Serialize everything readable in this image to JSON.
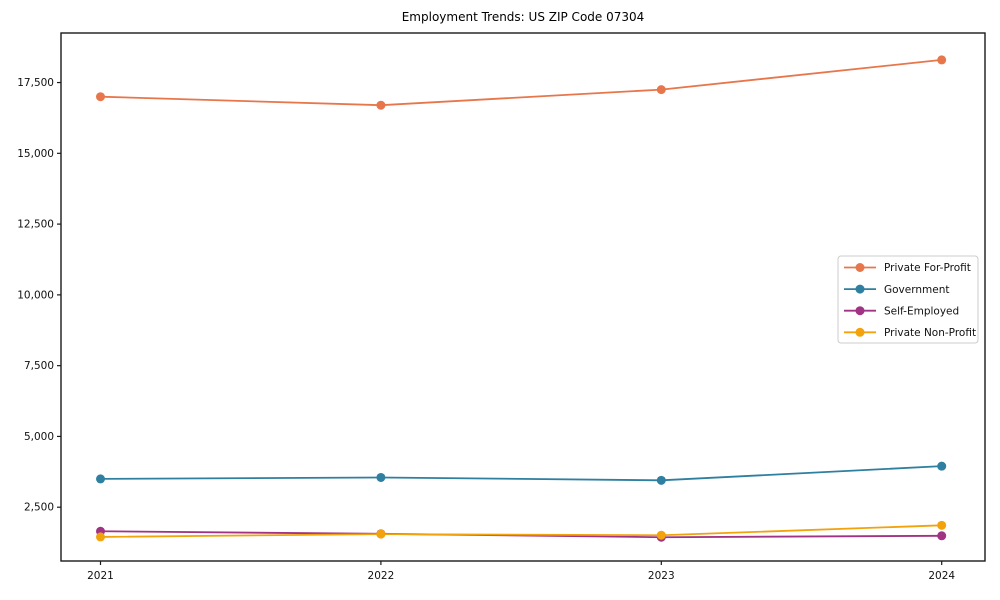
{
  "chart_data": {
    "type": "line",
    "title": "Employment Trends: US ZIP Code 07304",
    "categories": [
      "2021",
      "2022",
      "2023",
      "2024"
    ],
    "series": [
      {
        "name": "Private For-Profit",
        "color": "#E8764B",
        "values": [
          17000,
          16700,
          17250,
          18300
        ]
      },
      {
        "name": "Government",
        "color": "#2E7FA0",
        "values": [
          3500,
          3550,
          3450,
          3950
        ]
      },
      {
        "name": "Self-Employed",
        "color": "#A03383",
        "values": [
          1650,
          1560,
          1440,
          1490
        ]
      },
      {
        "name": "Private Non-Profit",
        "color": "#F2A30C",
        "values": [
          1450,
          1550,
          1510,
          1860
        ]
      }
    ],
    "yticks": [
      2500,
      5000,
      7500,
      10000,
      12500,
      15000,
      17500
    ],
    "ytick_labels": [
      "2,500",
      "5,000",
      "7,500",
      "10,000",
      "12,500",
      "15,000",
      "17,500"
    ],
    "ylim": [
      600,
      19250
    ],
    "xlabel": "",
    "ylabel": "",
    "grid": false,
    "legend_position": "center right",
    "marker": "circle",
    "axis_color": "#1a1a1a",
    "legend_border_color": "#cccccc",
    "background_color": "#ffffff"
  }
}
